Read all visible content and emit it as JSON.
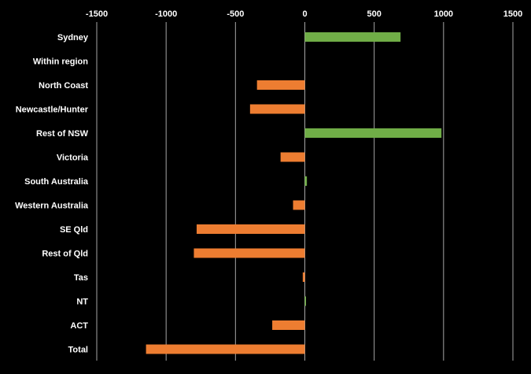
{
  "chart_data": {
    "type": "bar",
    "orientation": "horizontal",
    "title": "",
    "xlabel": "",
    "ylabel": "",
    "xlim": [
      -1500,
      1500
    ],
    "x_ticks": [
      -1500,
      -1000,
      -500,
      0,
      500,
      1000,
      1500
    ],
    "x_tick_labels": [
      "-1500",
      "-1000",
      "-500",
      "0",
      "500",
      "1000",
      "1500"
    ],
    "x_axis_position": "top",
    "grid": true,
    "legend": "none",
    "categories": [
      "Sydney",
      "Within region",
      "North Coast",
      "Newcastle/Hunter",
      "Rest of NSW",
      "Victoria",
      "South Australia",
      "Western Australia",
      "SE Qld",
      "Rest of Qld",
      "Tas",
      "NT",
      "ACT",
      "Total"
    ],
    "values": [
      690,
      0,
      -345,
      -395,
      985,
      -175,
      15,
      -85,
      -780,
      -800,
      -15,
      5,
      -235,
      -1145
    ],
    "colors": {
      "positive": "#70ad47",
      "negative": "#ed7d31",
      "background": "#000000",
      "grid": "#a6a6a6",
      "text": "#ffffff"
    }
  }
}
